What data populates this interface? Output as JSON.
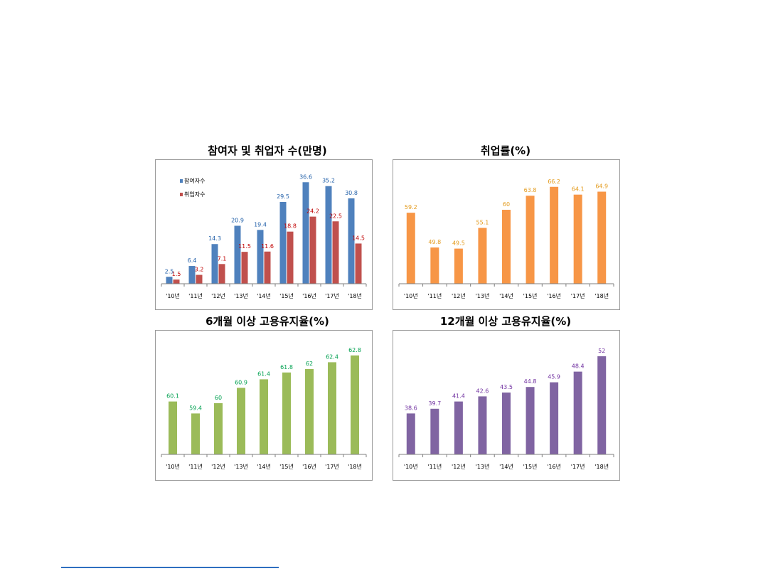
{
  "colors": {
    "participants": "#4f81bd",
    "employed": "#c0504d",
    "employment_rate": "#f79646",
    "retention6": "#9bbb59",
    "retention12": "#8064a2",
    "participants_label": "#1f5ea8",
    "employed_label": "#c00000",
    "employment_rate_label": "#e39a1b",
    "retention6_label": "#00a050",
    "retention12_label": "#7030a0"
  },
  "chart_data": [
    {
      "id": "participants-employed",
      "type": "bar",
      "title": "참여자 및 취업자 수(만명)",
      "categories": [
        "'10년",
        "'11년",
        "'12년",
        "'13년",
        "'14년",
        "'15년",
        "'16년",
        "'17년",
        "'18년"
      ],
      "series": [
        {
          "name": "참여자수",
          "values": [
            2.5,
            6.4,
            14.3,
            20.9,
            19.4,
            29.5,
            36.6,
            35.2,
            30.8
          ]
        },
        {
          "name": "취업자수",
          "values": [
            1.5,
            3.2,
            7.1,
            11.5,
            11.6,
            18.8,
            24.2,
            22.5,
            14.5
          ]
        }
      ],
      "legend": "top-left",
      "ylim": [
        0,
        40
      ]
    },
    {
      "id": "employment-rate",
      "type": "bar",
      "title": "취업률(%)",
      "categories": [
        "'10년",
        "'11년",
        "'12년",
        "'13년",
        "'14년",
        "'15년",
        "'16년",
        "'17년",
        "'18년"
      ],
      "series": [
        {
          "values": [
            59.2,
            49.8,
            49.5,
            55.1,
            60,
            63.8,
            66.2,
            64.1,
            64.9
          ]
        }
      ],
      "ylim": [
        40,
        70
      ]
    },
    {
      "id": "retention-6m",
      "type": "bar",
      "title": "6개월 이상 고용유지율(%)",
      "categories": [
        "'10년",
        "'11년",
        "'12년",
        "'13년",
        "'14년",
        "'15년",
        "'16년",
        "'17년",
        "'18년"
      ],
      "series": [
        {
          "values": [
            60.1,
            59.4,
            60,
            60.9,
            61.4,
            61.8,
            62,
            62.4,
            62.8
          ]
        }
      ],
      "ylim": [
        57,
        63.5
      ]
    },
    {
      "id": "retention-12m",
      "type": "bar",
      "title": "12개월 이상 고용유지율(%)",
      "categories": [
        "'10년",
        "'11년",
        "'12년",
        "'13년",
        "'14년",
        "'15년",
        "'16년",
        "'17년",
        "'18년"
      ],
      "series": [
        {
          "values": [
            38.6,
            39.7,
            41.4,
            42.6,
            43.5,
            44.8,
            45.9,
            48.4,
            52
          ]
        }
      ],
      "ylim": [
        29,
        55
      ]
    }
  ]
}
